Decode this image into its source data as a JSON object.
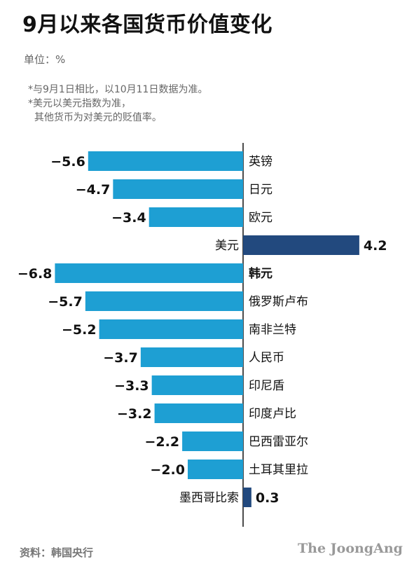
{
  "title": "9月以来各国货币价值变化",
  "unit": "单位：%",
  "notes": [
    "*与9月1日相比，以10月11日数据为准。",
    "*美元以美元指数为准，",
    "  其他货币为对美元的贬值率。"
  ],
  "source": "资料：韩国央行",
  "logo": "The JoongAng",
  "colors": {
    "negative": "#1e9fd3",
    "positive": "#22497e",
    "axis": "#111111",
    "label_bold": "韩元"
  },
  "chart_data": {
    "type": "bar",
    "orientation": "horizontal",
    "categories": [
      "英镑",
      "日元",
      "欧元",
      "美元",
      "韩元",
      "俄罗斯卢布",
      "南非兰特",
      "人民币",
      "印尼盾",
      "印度卢比",
      "巴西雷亚尔",
      "土耳其里拉",
      "墨西哥比索"
    ],
    "values": [
      -5.6,
      -4.7,
      -3.4,
      4.2,
      -6.8,
      -5.7,
      -5.2,
      -3.7,
      -3.3,
      -3.2,
      -2.2,
      -2.0,
      0.3
    ],
    "value_labels": [
      "−5.6",
      "−4.7",
      "−3.4",
      "4.2",
      "−6.8",
      "−5.7",
      "−5.2",
      "−3.7",
      "−3.3",
      "−3.2",
      "−2.2",
      "−2.0",
      "0.3"
    ],
    "highlight": "韩元",
    "title": "",
    "xlabel": "",
    "ylabel": "",
    "grid": false
  }
}
